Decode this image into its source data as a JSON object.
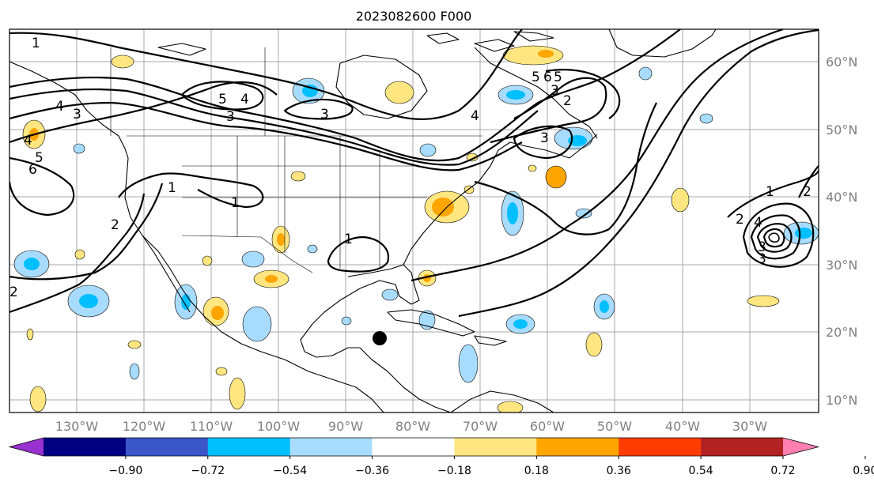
{
  "title": "2023082600 F000",
  "lon_labels": [
    "130°W",
    "120°W",
    "110°W",
    "100°W",
    "90°W",
    "80°W",
    "70°W",
    "60°W",
    "50°W",
    "40°W",
    "30°W"
  ],
  "lat_labels": [
    "60°N",
    "50°N",
    "40°N",
    "30°N",
    "20°N",
    "10°N"
  ],
  "colorbar": {
    "ticks": [
      "−0.90",
      "−0.72",
      "−0.54",
      "−0.36",
      "−0.18",
      "0.18",
      "0.36",
      "0.54",
      "0.72",
      "0.90"
    ],
    "colors": [
      "#9b30d0",
      "#000080",
      "#3a56c8",
      "#00bfff",
      "#a8dcff",
      "#ffffff",
      "#ffe680",
      "#ffa500",
      "#ff3c00",
      "#b22222",
      "#ff80b0"
    ]
  },
  "contour_labels": [
    "1",
    "2",
    "3",
    "4",
    "5",
    "6",
    "5",
    "4",
    "3",
    "1",
    "1",
    "2",
    "1",
    "3",
    "4",
    "5",
    "6",
    "5",
    "3",
    "2",
    "4",
    "3",
    "1",
    "2",
    "3",
    "4",
    "3",
    "2"
  ],
  "marker": "storm-center-dot"
}
